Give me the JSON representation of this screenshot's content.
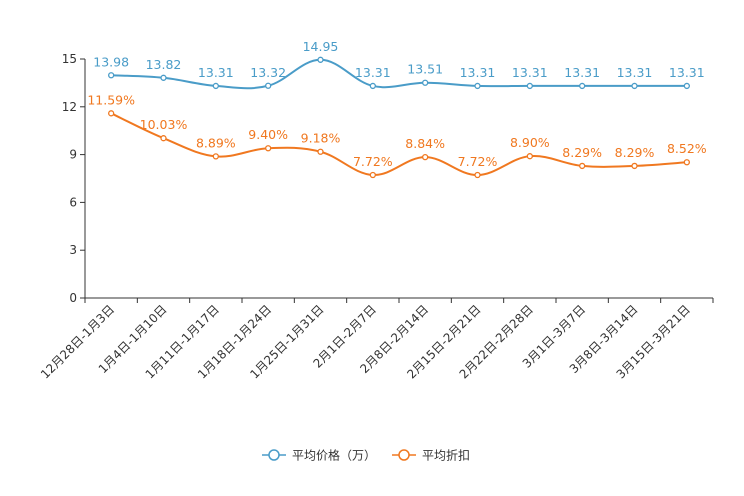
{
  "chart_data": {
    "type": "line",
    "title": "",
    "xlabel": "",
    "ylabel": "",
    "ylim": [
      0,
      15
    ],
    "yticks": [
      0,
      3,
      6,
      9,
      12,
      15
    ],
    "grid": false,
    "legend_position": "bottom-center",
    "categories": [
      "12月28日-1月3日",
      "1月4日-1月10日",
      "1月11日-1月17日",
      "1月18日-1月24日",
      "1月25日-1月31日",
      "2月1日-2月7日",
      "2月8日-2月14日",
      "2月15日-2月21日",
      "2月22日-2月28日",
      "3月1日-3月7日",
      "3月8日-3月14日",
      "3月15日-3月21日"
    ],
    "series": [
      {
        "name": "平均价格（万）",
        "color": "#4a9cc8",
        "values": [
          13.98,
          13.82,
          13.31,
          13.32,
          14.95,
          13.31,
          13.51,
          13.31,
          13.31,
          13.31,
          13.31,
          13.31
        ],
        "labels": [
          "13.98",
          "13.82",
          "13.31",
          "13.32",
          "14.95",
          "13.31",
          "13.51",
          "13.31",
          "13.31",
          "13.31",
          "13.31",
          "13.31"
        ]
      },
      {
        "name": "平均折扣",
        "color": "#f07820",
        "values": [
          11.59,
          10.03,
          8.89,
          9.4,
          9.18,
          7.72,
          8.84,
          7.72,
          8.9,
          8.29,
          8.29,
          8.52
        ],
        "labels": [
          "11.59%",
          "10.03%",
          "8.89%",
          "9.40%",
          "9.18%",
          "7.72%",
          "8.84%",
          "7.72%",
          "8.90%",
          "8.29%",
          "8.29%",
          "8.52%"
        ]
      }
    ]
  }
}
